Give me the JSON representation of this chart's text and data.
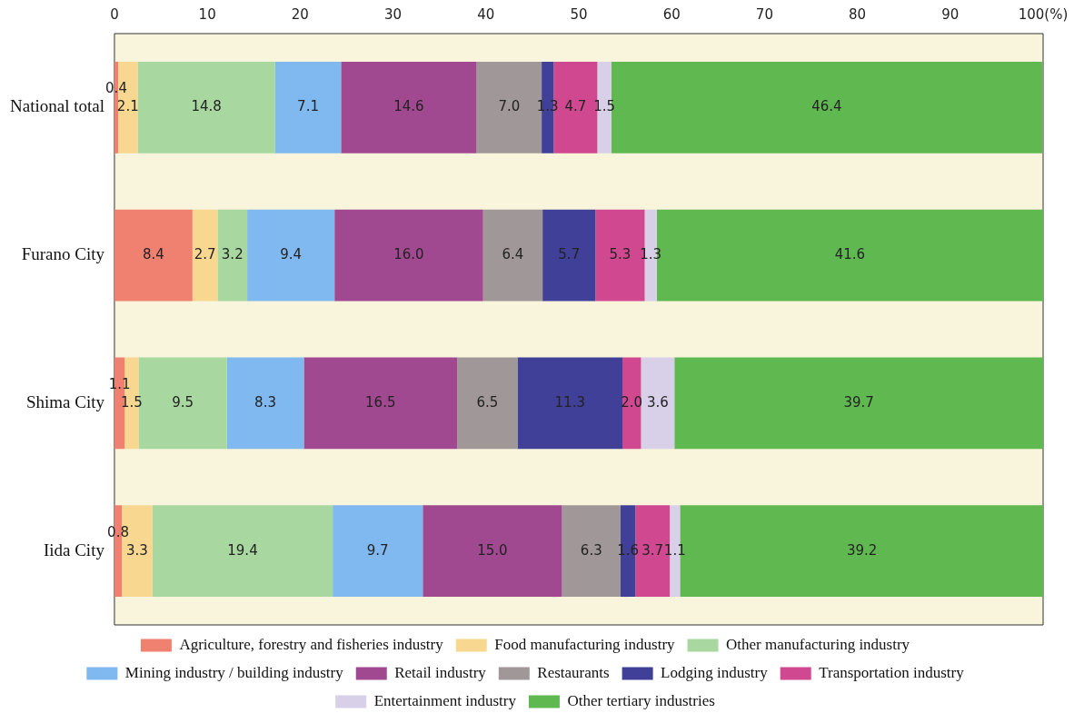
{
  "chart_data": {
    "type": "bar",
    "orientation": "horizontal",
    "stacked": true,
    "grid": false,
    "legend": "bottom",
    "categories": [
      "National total",
      "Furano City",
      "Shima City",
      "Iida City"
    ],
    "xlim": [
      0,
      100
    ],
    "xticks": [
      0,
      10,
      20,
      30,
      40,
      50,
      60,
      70,
      80,
      90,
      {
        "value": 100,
        "label": "100(%)"
      }
    ],
    "series": [
      {
        "name": "Agriculture, forestry and fisheries industry",
        "color": "#f08070",
        "values": [
          0.4,
          8.4,
          1.1,
          0.8
        ],
        "value_labels": [
          "0.4",
          "8.4",
          "1.1",
          "0.8"
        ]
      },
      {
        "name": "Food manufacturing industry",
        "color": "#f8d890",
        "values": [
          2.1,
          2.7,
          1.5,
          3.3
        ],
        "value_labels": [
          "2.1",
          "2.7",
          "1.5",
          "3.3"
        ]
      },
      {
        "name": "Other manufacturing industry",
        "color": "#a8d8a0",
        "values": [
          14.8,
          3.2,
          9.5,
          19.4
        ],
        "value_labels": [
          "14.8",
          "3.2",
          "9.5",
          "19.4"
        ]
      },
      {
        "name": "Mining industry / building industry",
        "color": "#80b8f0",
        "values": [
          7.1,
          9.4,
          8.3,
          9.7
        ],
        "value_labels": [
          "7.1",
          "9.4",
          "8.3",
          "9.7"
        ]
      },
      {
        "name": "Retail industry",
        "color": "#a04890",
        "values": [
          14.6,
          16.0,
          16.5,
          15.0
        ],
        "value_labels": [
          "14.6",
          "16.0",
          "16.5",
          "15.0"
        ]
      },
      {
        "name": "Restaurants",
        "color": "#a09898",
        "values": [
          7.0,
          6.4,
          6.5,
          6.3
        ],
        "value_labels": [
          "7.0",
          "6.4",
          "6.5",
          "6.3"
        ]
      },
      {
        "name": "Lodging industry",
        "color": "#404098",
        "values": [
          1.3,
          5.7,
          11.3,
          1.6
        ],
        "value_labels": [
          "1.3",
          "5.7",
          "11.3",
          "1.6"
        ]
      },
      {
        "name": "Transportation industry",
        "color": "#d04890",
        "values": [
          4.7,
          5.3,
          2.0,
          3.7
        ],
        "value_labels": [
          "4.7",
          "5.3",
          "2.0",
          "3.7"
        ]
      },
      {
        "name": "Entertainment industry",
        "color": "#d8d0e8",
        "values": [
          1.5,
          1.3,
          3.6,
          1.1
        ],
        "value_labels": [
          "1.5",
          "1.3",
          "3.6",
          "1.1"
        ]
      },
      {
        "name": "Other tertiary industries",
        "color": "#60b850",
        "values": [
          46.4,
          41.6,
          39.7,
          39.2
        ],
        "value_labels": [
          "46.4",
          "41.6",
          "39.7",
          "39.2"
        ]
      }
    ]
  }
}
